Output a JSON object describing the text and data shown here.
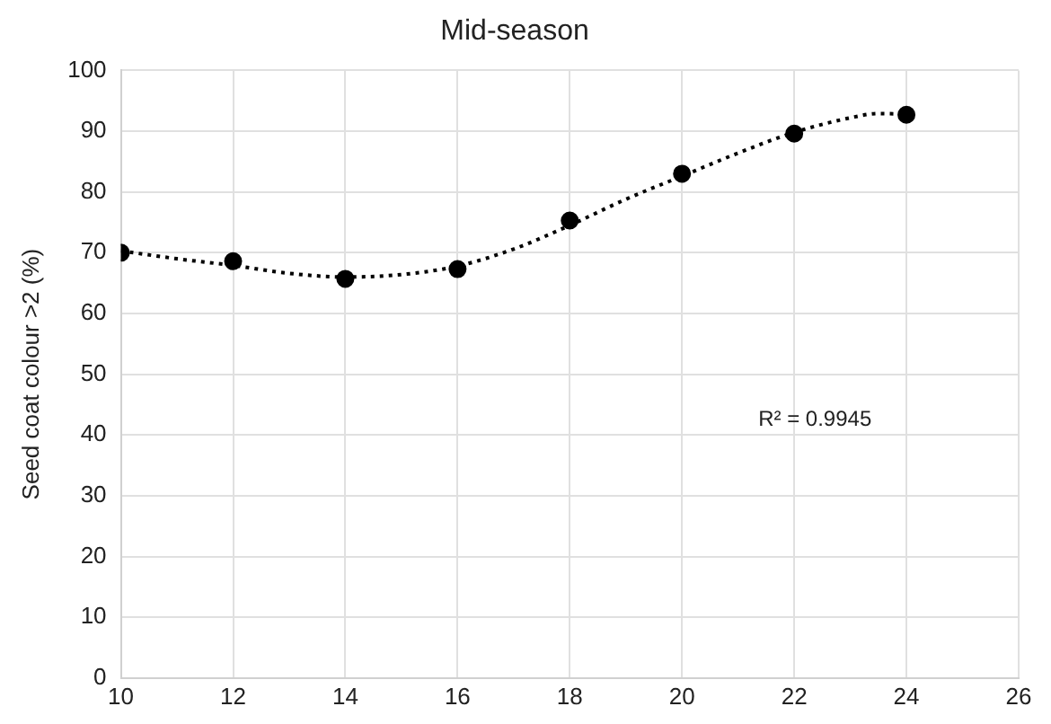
{
  "chart_data": {
    "type": "scatter",
    "title": "Mid-season",
    "ylabel": "Seed coat colour >2 (%)",
    "x": [
      10,
      12,
      14,
      16,
      18,
      20,
      22,
      24
    ],
    "series": [
      {
        "color": "#000000",
        "marker": "circle",
        "values": [
          70.0,
          68.6,
          65.7,
          67.3,
          75.3,
          83.0,
          89.6,
          92.7
        ]
      },
      {
        "type": "line",
        "color": "#000000",
        "marker": "none",
        "line_style": "dotted",
        "x": [
          10,
          11,
          12,
          13,
          14,
          15,
          16,
          17,
          18,
          19,
          20,
          21,
          22,
          23,
          23.5,
          24
        ],
        "values": [
          70.3,
          69.0,
          67.9,
          66.6,
          66.0,
          66.4,
          67.8,
          70.6,
          74.5,
          78.8,
          82.6,
          86.4,
          89.8,
          92.2,
          92.9,
          92.8
        ]
      }
    ],
    "xlim": [
      10,
      26
    ],
    "xticks": [
      10,
      12,
      14,
      16,
      18,
      20,
      22,
      24,
      26
    ],
    "ylim": [
      0,
      100
    ],
    "yticks": [
      0,
      10,
      20,
      30,
      40,
      50,
      60,
      70,
      80,
      90,
      100
    ],
    "grid": true,
    "legend": false,
    "annotations": [
      "R² = 0.9945"
    ]
  }
}
